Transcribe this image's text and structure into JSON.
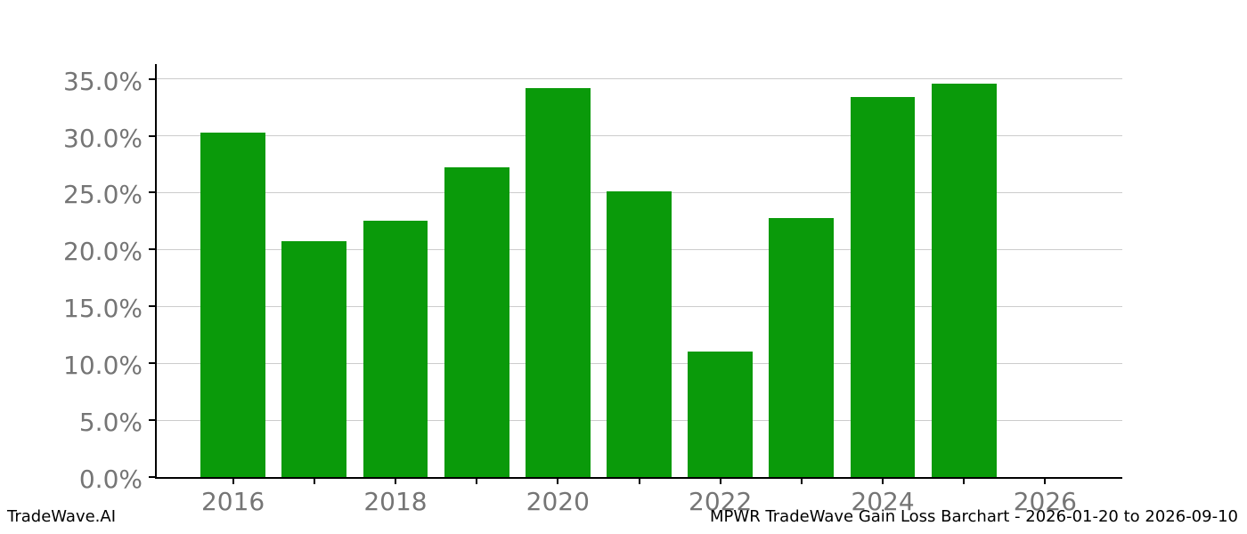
{
  "chart_data": {
    "type": "bar",
    "title": "",
    "categories": [
      "2016",
      "2017",
      "2018",
      "2019",
      "2020",
      "2021",
      "2022",
      "2023",
      "2024",
      "2025"
    ],
    "values": [
      30.3,
      20.7,
      22.5,
      27.2,
      34.2,
      25.1,
      11.0,
      22.8,
      33.4,
      34.6
    ],
    "value_unit": "%",
    "xlabel": "",
    "ylabel": "",
    "xlim": [
      2015.05,
      2026.95
    ],
    "ylim": [
      0,
      36.3
    ],
    "ytick_values": [
      0,
      5,
      10,
      15,
      20,
      25,
      30,
      35
    ],
    "ytick_labels": [
      "0.0%",
      "5.0%",
      "10.0%",
      "15.0%",
      "20.0%",
      "25.0%",
      "30.0%",
      "35.0%"
    ],
    "xtick_minor_years": [
      2016,
      2017,
      2018,
      2019,
      2020,
      2021,
      2022,
      2023,
      2024,
      2025,
      2026
    ],
    "xtick_labeled_years": [
      2016,
      2018,
      2020,
      2022,
      2024,
      2026
    ],
    "xtick_labels": [
      "2016",
      "2018",
      "2020",
      "2022",
      "2024",
      "2026"
    ],
    "bar_width_years": 0.8,
    "grid": "horizontal",
    "legend": "none"
  },
  "footer": {
    "brand": "TradeWave.AI",
    "title": "MPWR TradeWave Gain Loss Barchart - 2026-01-20 to 2026-09-10"
  },
  "colors": {
    "bar": "#0a9a0a",
    "grid": "#cccccc",
    "axis": "#000000",
    "tick_label": "#757575",
    "footer_text": "#000000",
    "background": "#ffffff"
  }
}
